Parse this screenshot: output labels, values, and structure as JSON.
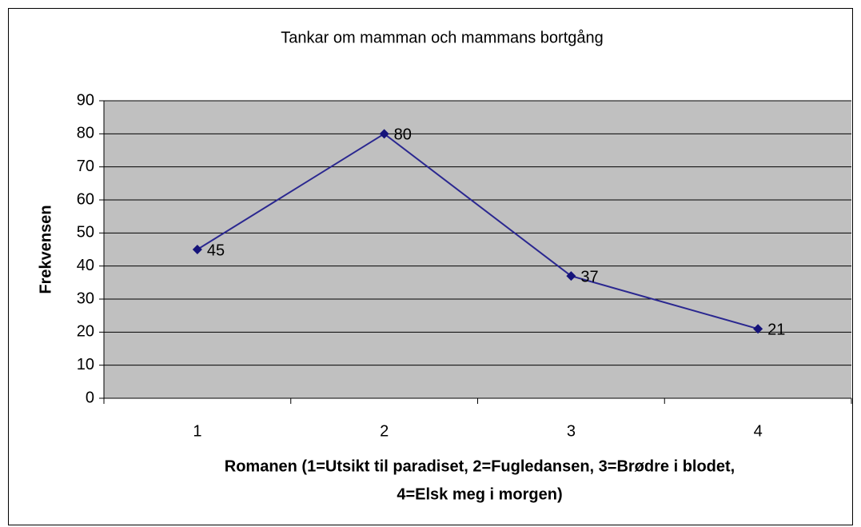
{
  "chart_data": {
    "type": "line",
    "title": "Tankar om mamman och mammans bortgång",
    "x_label": [
      "Romanen (1=Utsikt til paradiset, 2=Fugledansen, 3=Brødre i blodet,",
      "4=Elsk meg i morgen)"
    ],
    "y_label": "Frekvensen",
    "categories": [
      "1",
      "2",
      "3",
      "4"
    ],
    "series": [
      {
        "name": "Frekvensen",
        "color": "#2a2790",
        "values": [
          45,
          80,
          37,
          21
        ]
      }
    ],
    "ylim": [
      0,
      90
    ],
    "yticks": [
      0,
      10,
      20,
      30,
      40,
      50,
      60,
      70,
      80,
      90
    ],
    "grid": true,
    "data_labels": true
  }
}
